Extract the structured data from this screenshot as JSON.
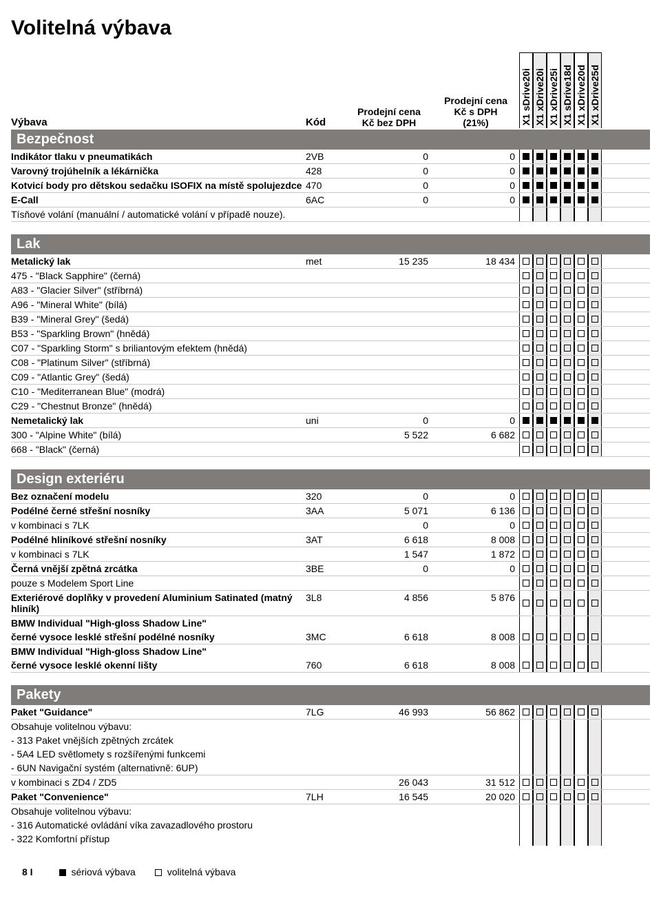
{
  "title": "Volitelná výbava",
  "header": {
    "label": "Výbava",
    "code": "Kód",
    "price1_lines": [
      "Prodejní cena",
      "Kč bez DPH"
    ],
    "price2_lines": [
      "Prodejní cena",
      "Kč s DPH",
      "(21%)"
    ],
    "models": [
      {
        "name": "X1 sDrive20i",
        "shaded": false
      },
      {
        "name": "X1 xDrive20i",
        "shaded": true
      },
      {
        "name": "X1 xDrive25i",
        "shaded": false
      },
      {
        "name": "X1 sDrive18d",
        "shaded": true
      },
      {
        "name": "X1 xDrive20d",
        "shaded": false
      },
      {
        "name": "X1 xDrive25d",
        "shaded": true
      }
    ]
  },
  "sections": [
    {
      "name": "Bezpečnost",
      "rows": [
        {
          "label": "Indikátor tlaku v pneumatikách",
          "code": "2VB",
          "p1": "0",
          "p2": "0",
          "m": [
            "f",
            "f",
            "f",
            "f",
            "f",
            "f"
          ],
          "bold": true
        },
        {
          "label": "Varovný trojúhelník a lékárnička",
          "code": "428",
          "p1": "0",
          "p2": "0",
          "m": [
            "f",
            "f",
            "f",
            "f",
            "f",
            "f"
          ],
          "bold": true
        },
        {
          "label": "Kotvicí body pro dětskou sedačku ISOFIX na místě spolujezdce",
          "code": "470",
          "p1": "0",
          "p2": "0",
          "m": [
            "f",
            "f",
            "f",
            "f",
            "f",
            "f"
          ],
          "bold": true
        },
        {
          "label": "E-Call",
          "code": "6AC",
          "p1": "0",
          "p2": "0",
          "m": [
            "f",
            "f",
            "f",
            "f",
            "f",
            "f"
          ],
          "bold": true
        },
        {
          "label": "Tísňové volání (manuální / automatické volání v případě nouze).",
          "code": "",
          "p1": "",
          "p2": "",
          "m": null,
          "bold": false
        }
      ]
    },
    {
      "name": "Lak",
      "rows": [
        {
          "label": "Metalický lak",
          "code": "met",
          "p1": "15 235",
          "p2": "18 434",
          "m": [
            "e",
            "e",
            "e",
            "e",
            "e",
            "e"
          ],
          "bold": true
        },
        {
          "label": "475 - \"Black Sapphire\" (černá)",
          "code": "",
          "p1": "",
          "p2": "",
          "m": [
            "e",
            "e",
            "e",
            "e",
            "e",
            "e"
          ],
          "bold": false
        },
        {
          "label": "A83 - \"Glacier Silver\" (stříbrná)",
          "code": "",
          "p1": "",
          "p2": "",
          "m": [
            "e",
            "e",
            "e",
            "e",
            "e",
            "e"
          ],
          "bold": false
        },
        {
          "label": "A96 - \"Mineral White\" (bílá)",
          "code": "",
          "p1": "",
          "p2": "",
          "m": [
            "e",
            "e",
            "e",
            "e",
            "e",
            "e"
          ],
          "bold": false
        },
        {
          "label": "B39 - \"Mineral Grey\" (šedá)",
          "code": "",
          "p1": "",
          "p2": "",
          "m": [
            "e",
            "e",
            "e",
            "e",
            "e",
            "e"
          ],
          "bold": false
        },
        {
          "label": "B53 - \"Sparkling Brown\" (hnědá)",
          "code": "",
          "p1": "",
          "p2": "",
          "m": [
            "e",
            "e",
            "e",
            "e",
            "e",
            "e"
          ],
          "bold": false
        },
        {
          "label": "C07 - \"Sparkling Storm\" s briliantovým efektem (hnědá)",
          "code": "",
          "p1": "",
          "p2": "",
          "m": [
            "e",
            "e",
            "e",
            "e",
            "e",
            "e"
          ],
          "bold": false
        },
        {
          "label": "C08 - \"Platinum Silver\" (stříbrná)",
          "code": "",
          "p1": "",
          "p2": "",
          "m": [
            "e",
            "e",
            "e",
            "e",
            "e",
            "e"
          ],
          "bold": false
        },
        {
          "label": "C09 - \"Atlantic Grey\" (šedá)",
          "code": "",
          "p1": "",
          "p2": "",
          "m": [
            "e",
            "e",
            "e",
            "e",
            "e",
            "e"
          ],
          "bold": false
        },
        {
          "label": "C10 - \"Mediterranean Blue\" (modrá)",
          "code": "",
          "p1": "",
          "p2": "",
          "m": [
            "e",
            "e",
            "e",
            "e",
            "e",
            "e"
          ],
          "bold": false
        },
        {
          "label": "C29 - \"Chestnut Bronze\" (hnědá)",
          "code": "",
          "p1": "",
          "p2": "",
          "m": [
            "e",
            "e",
            "e",
            "e",
            "e",
            "e"
          ],
          "bold": false
        },
        {
          "label": "Nemetalický lak",
          "code": "uni",
          "p1": "0",
          "p2": "0",
          "m": [
            "f",
            "f",
            "f",
            "f",
            "f",
            "f"
          ],
          "bold": true
        },
        {
          "label": "300 - \"Alpine White\" (bílá)",
          "code": "",
          "p1": "5 522",
          "p2": "6 682",
          "m": [
            "e",
            "e",
            "e",
            "e",
            "e",
            "e"
          ],
          "bold": false
        },
        {
          "label": "668 - \"Black\" (černá)",
          "code": "",
          "p1": "",
          "p2": "",
          "m": [
            "e",
            "e",
            "e",
            "e",
            "e",
            "e"
          ],
          "bold": false
        }
      ]
    },
    {
      "name": "Design exteriéru",
      "rows": [
        {
          "label": "Bez označení modelu",
          "code": "320",
          "p1": "0",
          "p2": "0",
          "m": [
            "e",
            "e",
            "e",
            "e",
            "e",
            "e"
          ],
          "bold": true
        },
        {
          "label": "Podélné černé střešní nosníky",
          "code": "3AA",
          "p1": "5 071",
          "p2": "6 136",
          "m": [
            "e",
            "e",
            "e",
            "e",
            "e",
            "e"
          ],
          "bold": true
        },
        {
          "label": "v kombinaci s 7LK",
          "code": "",
          "p1": "0",
          "p2": "0",
          "m": [
            "e",
            "e",
            "e",
            "e",
            "e",
            "e"
          ],
          "bold": false
        },
        {
          "label": "Podélné hliníkové střešní nosníky",
          "code": "3AT",
          "p1": "6 618",
          "p2": "8 008",
          "m": [
            "e",
            "e",
            "e",
            "e",
            "e",
            "e"
          ],
          "bold": true
        },
        {
          "label": "v kombinaci s 7LK",
          "code": "",
          "p1": "1 547",
          "p2": "1 872",
          "m": [
            "e",
            "e",
            "e",
            "e",
            "e",
            "e"
          ],
          "bold": false
        },
        {
          "label": "Černá vnější zpětná zrcátka",
          "code": "3BE",
          "p1": "0",
          "p2": "0",
          "m": [
            "e",
            "e",
            "e",
            "e",
            "e",
            "e"
          ],
          "bold": true
        },
        {
          "label": "pouze s Modelem Sport Line",
          "code": "",
          "p1": "",
          "p2": "",
          "m": [
            "e",
            "e",
            "e",
            "e",
            "e",
            "e"
          ],
          "bold": false
        },
        {
          "label": "Exteriérové doplňky v provedení Aluminium Satinated (matný hliník)",
          "code": "3L8",
          "p1": "4 856",
          "p2": "5 876",
          "m": [
            "e",
            "e",
            "e",
            "e",
            "e",
            "e"
          ],
          "bold": true
        },
        {
          "label": "BMW Individual \"High-gloss Shadow Line\"",
          "code": "",
          "p1": "",
          "p2": "",
          "m": null,
          "bold": true,
          "noborder": true
        },
        {
          "label": "černé vysoce lesklé střešní podélné nosníky",
          "code": "3MC",
          "p1": "6 618",
          "p2": "8 008",
          "m": [
            "e",
            "e",
            "e",
            "e",
            "e",
            "e"
          ],
          "bold": true
        },
        {
          "label": "BMW Individual \"High-gloss Shadow Line\"",
          "code": "",
          "p1": "",
          "p2": "",
          "m": null,
          "bold": true,
          "noborder": true
        },
        {
          "label": "černé vysoce lesklé okenní lišty",
          "code": "760",
          "p1": "6 618",
          "p2": "8 008",
          "m": [
            "e",
            "e",
            "e",
            "e",
            "e",
            "e"
          ],
          "bold": true
        }
      ]
    },
    {
      "name": "Pakety",
      "rows": [
        {
          "label": "Paket \"Guidance\"",
          "code": "7LG",
          "p1": "46 993",
          "p2": "56 862",
          "m": [
            "e",
            "e",
            "e",
            "e",
            "e",
            "e"
          ],
          "bold": true
        },
        {
          "label": "Obsahuje volitelnou výbavu:",
          "code": "",
          "p1": "",
          "p2": "",
          "m": null,
          "bold": false,
          "noborder": true
        },
        {
          "label": "- 313 Paket vnějších zpětných zrcátek",
          "code": "",
          "p1": "",
          "p2": "",
          "m": null,
          "bold": false,
          "noborder": true
        },
        {
          "label": "- 5A4 LED světlomety s rozšířenými funkcemi",
          "code": "",
          "p1": "",
          "p2": "",
          "m": null,
          "bold": false,
          "noborder": true
        },
        {
          "label": "- 6UN Navigační systém (alternativně: 6UP)",
          "code": "",
          "p1": "",
          "p2": "",
          "m": null,
          "bold": false
        },
        {
          "label": "v kombinaci s ZD4 / ZD5",
          "code": "",
          "p1": "26 043",
          "p2": "31 512",
          "m": [
            "e",
            "e",
            "e",
            "e",
            "e",
            "e"
          ],
          "bold": false
        },
        {
          "label": "Paket \"Convenience\"",
          "code": "7LH",
          "p1": "16 545",
          "p2": "20 020",
          "m": [
            "e",
            "e",
            "e",
            "e",
            "e",
            "e"
          ],
          "bold": true
        },
        {
          "label": "Obsahuje volitelnou výbavu:",
          "code": "",
          "p1": "",
          "p2": "",
          "m": null,
          "bold": false,
          "noborder": true
        },
        {
          "label": "- 316 Automatické ovládání víka zavazadlového prostoru",
          "code": "",
          "p1": "",
          "p2": "",
          "m": null,
          "bold": false,
          "noborder": true
        },
        {
          "label": "- 322 Komfortní přístup",
          "code": "",
          "p1": "",
          "p2": "",
          "m": null,
          "bold": false
        }
      ]
    }
  ],
  "legend": {
    "page": "8 I",
    "serial": "sériová výbava",
    "optional": "volitelná výbava"
  }
}
